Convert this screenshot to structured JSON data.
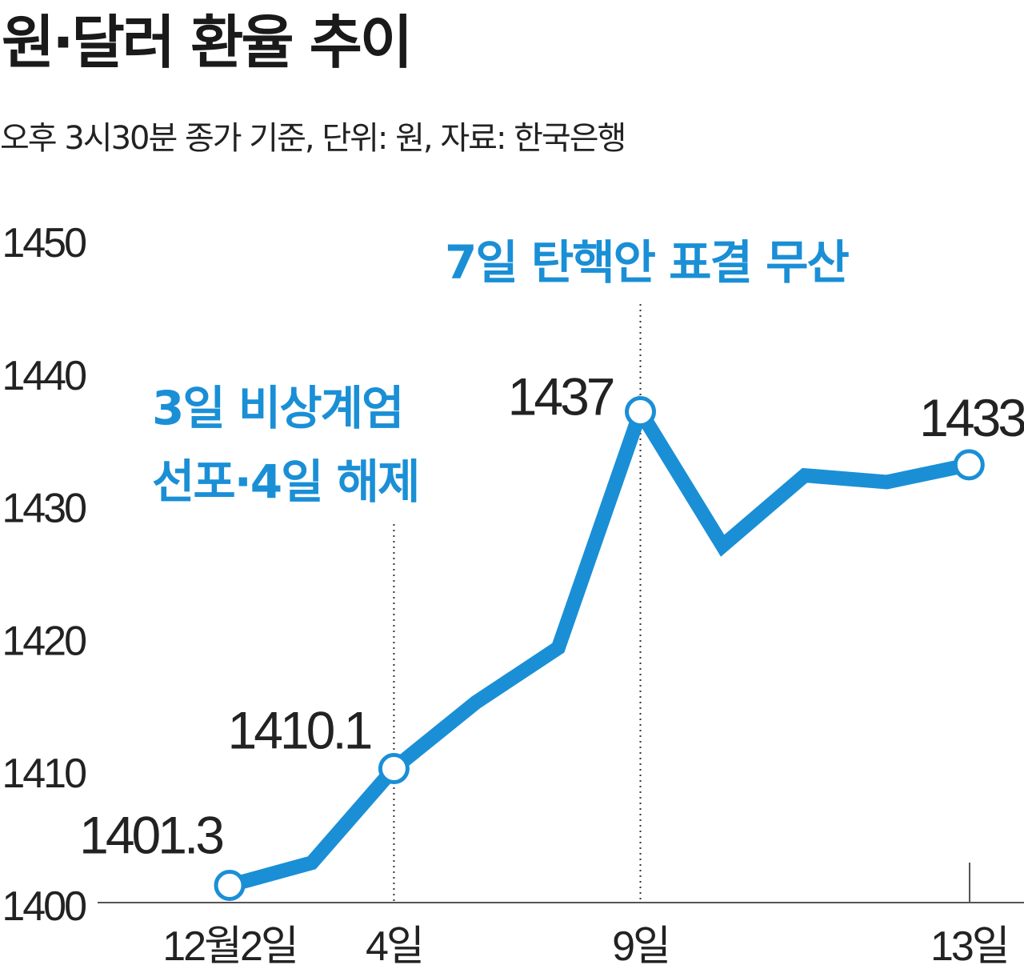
{
  "title": "원·달러 환율 추이",
  "subtitle": "오후 3시30분 종가 기준, 단위: 원, 자료: 한국은행",
  "colors": {
    "line": "#1a8fd6",
    "annotation": "#1a8fd6",
    "axis": "#555555",
    "text": "#222222"
  },
  "chart_data": {
    "type": "line",
    "title": "원·달러 환율 추이",
    "ylim": [
      1400,
      1450
    ],
    "yticks": [
      "1400",
      "1410",
      "1420",
      "1430",
      "1440",
      "1450"
    ],
    "xticks": [
      {
        "label": "12월2일",
        "index": 0
      },
      {
        "label": "4일",
        "index": 2
      },
      {
        "label": "9일",
        "index": 5
      },
      {
        "label": "13일",
        "index": 9
      }
    ],
    "series": [
      {
        "values": [
          1401.3,
          1403.0,
          1410.1,
          1415.1,
          1419.2,
          1437.0,
          1426.9,
          1432.2,
          1431.7,
          1433.0
        ]
      }
    ],
    "markers": [
      0,
      2,
      5,
      9
    ],
    "data_labels": [
      {
        "index": 0,
        "text": "1401.3"
      },
      {
        "index": 2,
        "text": "1410.1"
      },
      {
        "index": 5,
        "text": "1437"
      },
      {
        "index": 9,
        "text": "1433"
      }
    ],
    "annotations": [
      {
        "lines": [
          "3일 비상계엄",
          "선포·4일 해제"
        ],
        "index": 2
      },
      {
        "lines": [
          "7일 탄핵안 표결 무산"
        ],
        "index": 5
      }
    ],
    "grid": false
  }
}
